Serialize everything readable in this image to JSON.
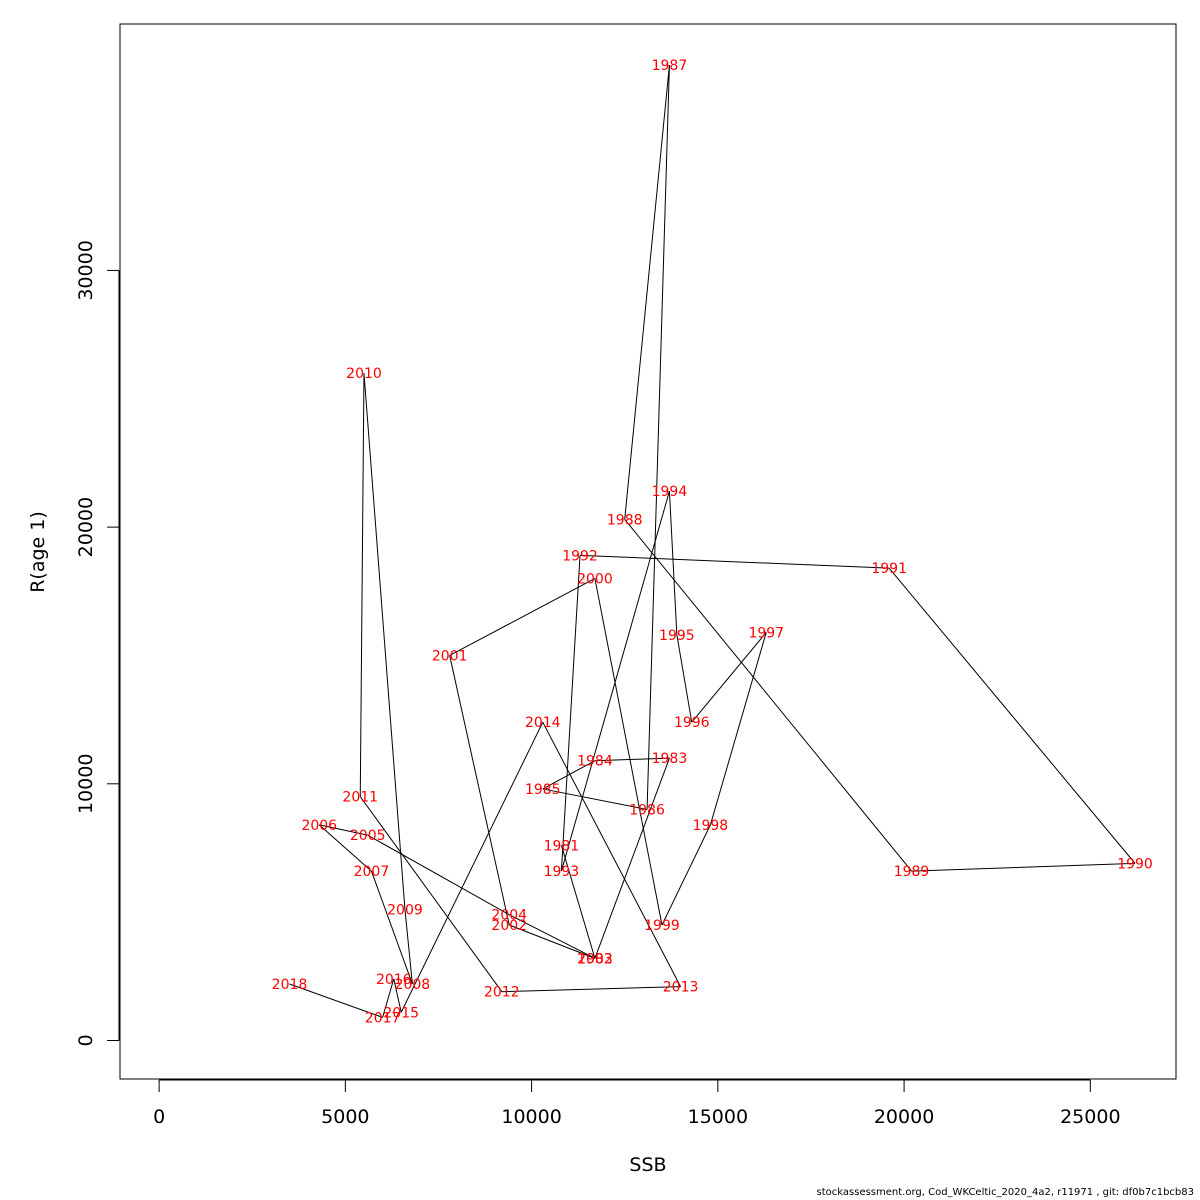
{
  "footer": "stockassessment.org, Cod_WKCeltic_2020_4a2, r11971 , git: df0b7c1bcb83",
  "chart_data": {
    "type": "line",
    "xlabel": "SSB",
    "ylabel": "R(age 1)",
    "xlim": [
      -1050,
      27300
    ],
    "ylim": [
      -1500,
      39600
    ],
    "xticks": [
      0,
      5000,
      10000,
      15000,
      20000,
      25000
    ],
    "yticks": [
      0,
      10000,
      20000,
      30000
    ],
    "point_label_color": "#ff0000",
    "line_color": "#000000",
    "grid": false,
    "points": [
      {
        "label": "1981",
        "x": 10800,
        "y": 7600
      },
      {
        "label": "1982",
        "x": 11700,
        "y": 3200
      },
      {
        "label": "1983",
        "x": 13700,
        "y": 11000
      },
      {
        "label": "1984",
        "x": 11700,
        "y": 10900
      },
      {
        "label": "1985",
        "x": 10300,
        "y": 9800
      },
      {
        "label": "1986",
        "x": 13100,
        "y": 9000
      },
      {
        "label": "1987",
        "x": 13700,
        "y": 38000
      },
      {
        "label": "1988",
        "x": 12500,
        "y": 20300
      },
      {
        "label": "1989",
        "x": 20200,
        "y": 6600
      },
      {
        "label": "1990",
        "x": 26200,
        "y": 6900
      },
      {
        "label": "1991",
        "x": 19600,
        "y": 18400
      },
      {
        "label": "1992",
        "x": 11300,
        "y": 18900
      },
      {
        "label": "1993",
        "x": 10800,
        "y": 6600
      },
      {
        "label": "1994",
        "x": 13700,
        "y": 21400
      },
      {
        "label": "1995",
        "x": 13900,
        "y": 15800
      },
      {
        "label": "1996",
        "x": 14300,
        "y": 12400
      },
      {
        "label": "1997",
        "x": 16300,
        "y": 15900
      },
      {
        "label": "1998",
        "x": 14800,
        "y": 8400
      },
      {
        "label": "1999",
        "x": 13500,
        "y": 4500
      },
      {
        "label": "2000",
        "x": 11700,
        "y": 18000
      },
      {
        "label": "2001",
        "x": 7800,
        "y": 15000
      },
      {
        "label": "2002",
        "x": 9400,
        "y": 4500
      },
      {
        "label": "2003",
        "x": 11700,
        "y": 3200
      },
      {
        "label": "2004",
        "x": 9400,
        "y": 4900
      },
      {
        "label": "2005",
        "x": 5600,
        "y": 8000
      },
      {
        "label": "2006",
        "x": 4300,
        "y": 8400
      },
      {
        "label": "2007",
        "x": 5700,
        "y": 6600
      },
      {
        "label": "2008",
        "x": 6800,
        "y": 2200
      },
      {
        "label": "2009",
        "x": 6600,
        "y": 5100
      },
      {
        "label": "2010",
        "x": 5500,
        "y": 26000
      },
      {
        "label": "2011",
        "x": 5400,
        "y": 9500
      },
      {
        "label": "2012",
        "x": 9200,
        "y": 1900
      },
      {
        "label": "2013",
        "x": 14000,
        "y": 2100
      },
      {
        "label": "2014",
        "x": 10300,
        "y": 12400
      },
      {
        "label": "2015",
        "x": 6500,
        "y": 1100
      },
      {
        "label": "2016",
        "x": 6300,
        "y": 2400
      },
      {
        "label": "2017",
        "x": 6000,
        "y": 900
      },
      {
        "label": "2018",
        "x": 3500,
        "y": 2200
      }
    ]
  }
}
